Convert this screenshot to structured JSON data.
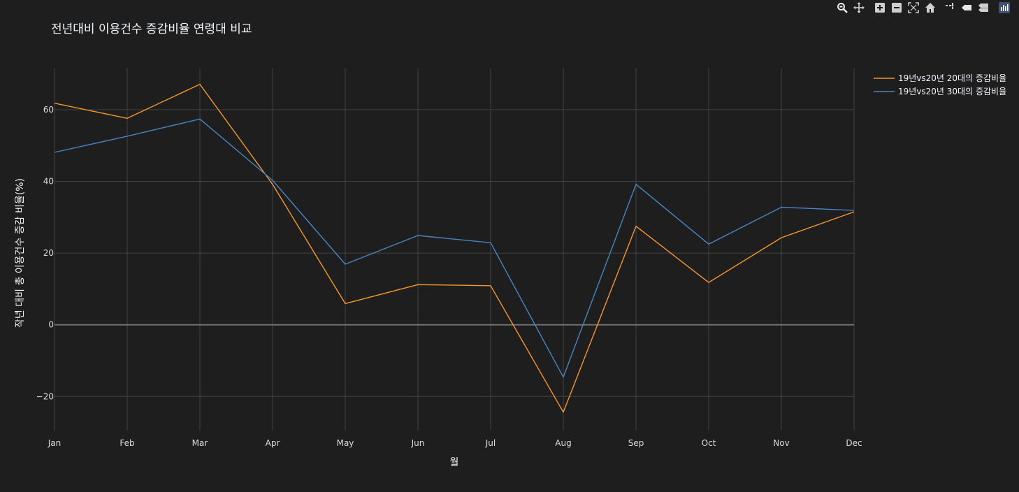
{
  "colors": {
    "background": "#1e1e1f",
    "grid": "#414141",
    "zero_line": "#6f6f6f",
    "text": "#f2f5fa",
    "tick_text": "#dcdcdc",
    "series_20s": "#f7952f",
    "series_30s": "#4785c2",
    "modebar_icon": "#cfcfcf",
    "modebar_active": "#e8e8e8"
  },
  "modebar": {
    "buttons": [
      "zoom-icon",
      "pan-icon",
      "zoom-in-icon",
      "zoom-out-icon",
      "autoscale-icon",
      "reset-axes-icon",
      "spike-lines-icon",
      "hover-closest-icon",
      "hover-compare-icon",
      "plotly-logo-icon"
    ]
  },
  "chart_data": {
    "type": "line",
    "title": "전년대비 이용건수 증감비율 연령대 비교",
    "xlabel": "월",
    "ylabel": "작년 대비 총 이용건수 증감 비율(%)",
    "categories": [
      "Jan",
      "Feb",
      "Mar",
      "Apr",
      "May",
      "Jun",
      "Jul",
      "Aug",
      "Sep",
      "Oct",
      "Nov",
      "Dec"
    ],
    "ylim": [
      -29.5,
      71.5
    ],
    "yticks": [
      -20,
      0,
      20,
      40,
      60
    ],
    "ytick_labels": [
      "−20",
      "0",
      "20",
      "40",
      "60"
    ],
    "grid": true,
    "legend_position": "top-right",
    "series": [
      {
        "name": "19년vs20년 20대의 증감비율",
        "color": "#f7952f",
        "values": [
          61.8,
          57.6,
          67.1,
          39.2,
          5.9,
          11.2,
          10.9,
          -24.4,
          27.5,
          11.8,
          24.3,
          31.5
        ]
      },
      {
        "name": "19년vs20년 30대의 증감비율",
        "color": "#4785c2",
        "values": [
          48.1,
          52.6,
          57.4,
          40.3,
          16.9,
          24.9,
          22.9,
          -14.6,
          39.2,
          22.5,
          32.8,
          31.9
        ]
      }
    ]
  }
}
